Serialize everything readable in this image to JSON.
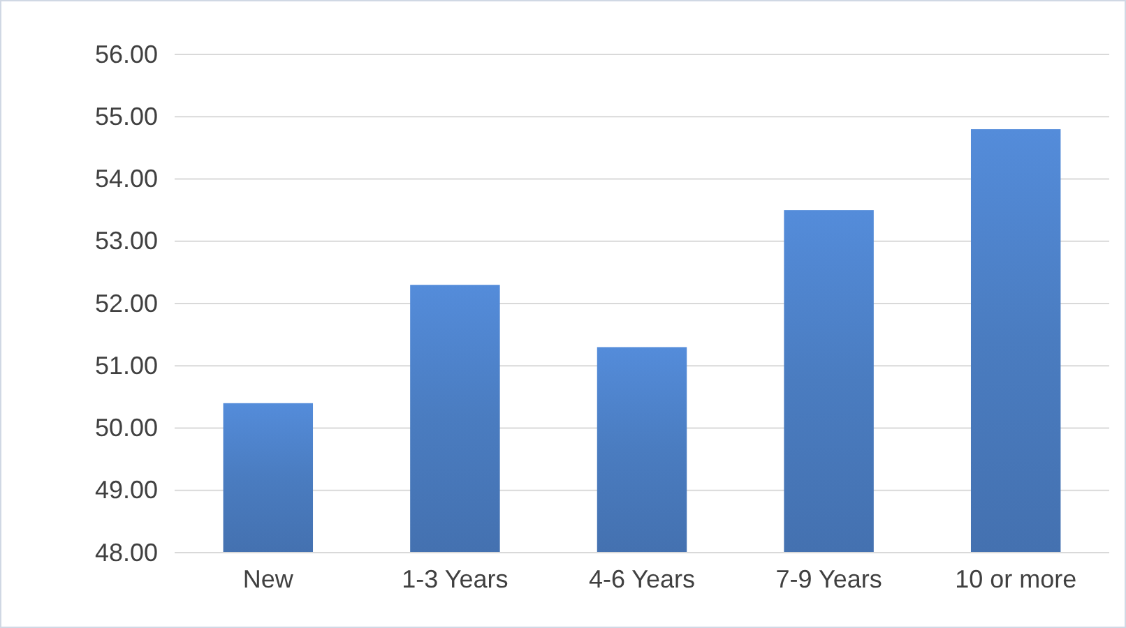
{
  "chart_data": {
    "type": "bar",
    "categories": [
      "New",
      "1-3 Years",
      "4-6 Years",
      "7-9 Years",
      "10 or more"
    ],
    "values": [
      50.4,
      52.3,
      51.3,
      53.5,
      54.8
    ],
    "color": "#4a7cc0",
    "ylim": [
      48,
      56
    ],
    "yticks": [
      {
        "value": 48,
        "label": "48.00"
      },
      {
        "value": 49,
        "label": "49.00"
      },
      {
        "value": 50,
        "label": "50.00"
      },
      {
        "value": 51,
        "label": "51.00"
      },
      {
        "value": 52,
        "label": "52.00"
      },
      {
        "value": 53,
        "label": "53.00"
      },
      {
        "value": 54,
        "label": "54.00"
      },
      {
        "value": 55,
        "label": "55.00"
      },
      {
        "value": 56,
        "label": "56.00"
      }
    ],
    "grid": "y"
  }
}
